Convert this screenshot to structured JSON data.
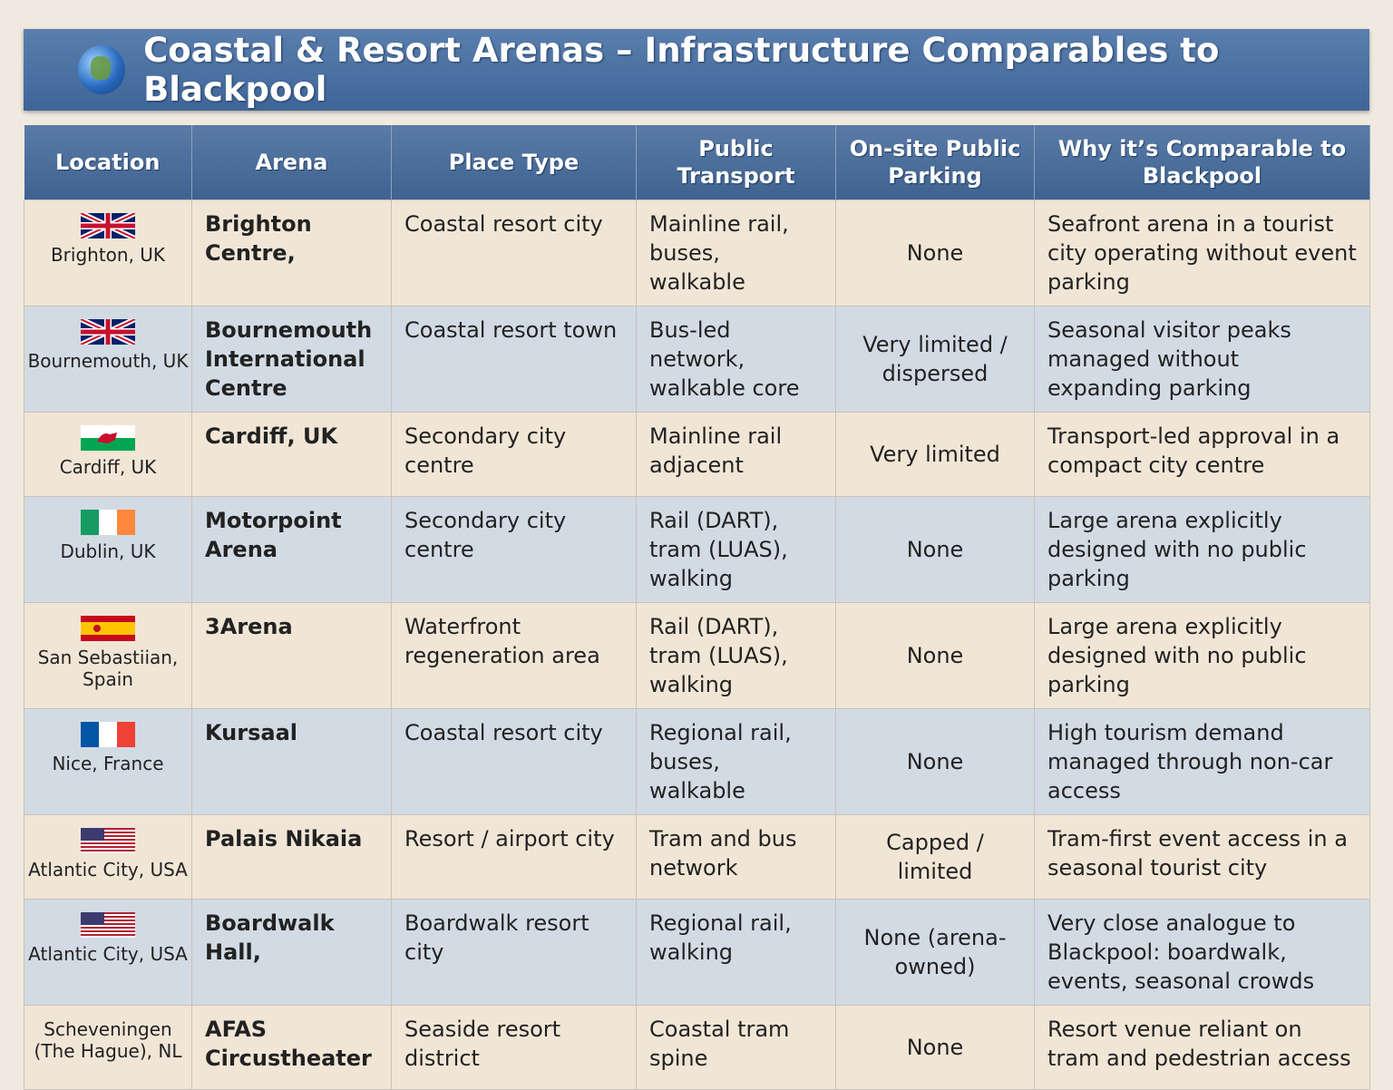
{
  "header": {
    "title": "Coastal & Resort Arenas – Infrastructure Comparables to Blackpool"
  },
  "table": {
    "columns": [
      "Location",
      "Arena",
      "Place Type",
      "Public Transport",
      "On-site Public Parking",
      "Why it’s Comparable to Blackpool"
    ],
    "rows": [
      [
        "Brighton, UK",
        "Brighton Centre,",
        "Coastal resort city",
        "Mainline rail, buses, walkable",
        "None",
        "Seafront arena in a tourist city operating without event parking"
      ],
      [
        "Bournemouth, UK",
        "Bournemouth International Centre",
        "Coastal resort town",
        "Bus-led network, walkable core",
        "Very limited / dispersed",
        "Seasonal visitor peaks managed without expanding parking"
      ],
      [
        "Cardiff, UK",
        "Cardiff, UK",
        "Secondary city centre",
        "Mainline rail adjacent",
        "Very limited",
        "Transport-led approval in a compact city centre"
      ],
      [
        "Dublin, UK",
        "Motorpoint Arena",
        "Secondary city centre",
        "Rail (DART), tram (LUAS), walking",
        "None",
        "Large arena explicitly designed with no public parking"
      ],
      [
        "San Sebastiian, Spain",
        "3Arena",
        "Waterfront regeneration area",
        "Rail (DART), tram (LUAS), walking",
        "None",
        "Large arena explicitly designed with no public parking"
      ],
      [
        "Nice, France",
        "Kursaal",
        "Coastal resort city",
        "Regional rail, buses, walkable",
        "None",
        "High tourism demand managed through non-car access"
      ],
      [
        "Atlantic City, USA",
        "Palais Nikaia",
        "Resort / airport city",
        "Tram and bus network",
        "Capped / limited",
        "Tram-first event access in a seasonal tourist city"
      ],
      [
        "Atlantic City, USA",
        "Boardwalk Hall,",
        "Boardwalk resort city",
        "Regional rail, walking",
        "None (arena-owned)",
        "Very close analogue to Blackpool: boardwalk, events, seasonal crowds"
      ],
      [
        "Scheveningen (The Hague), NL",
        "AFAS Circustheater",
        "Seaside resort district",
        "Coastal tram spine",
        "None",
        "Resort venue reliant on tram and pedestrian access"
      ]
    ]
  }
}
